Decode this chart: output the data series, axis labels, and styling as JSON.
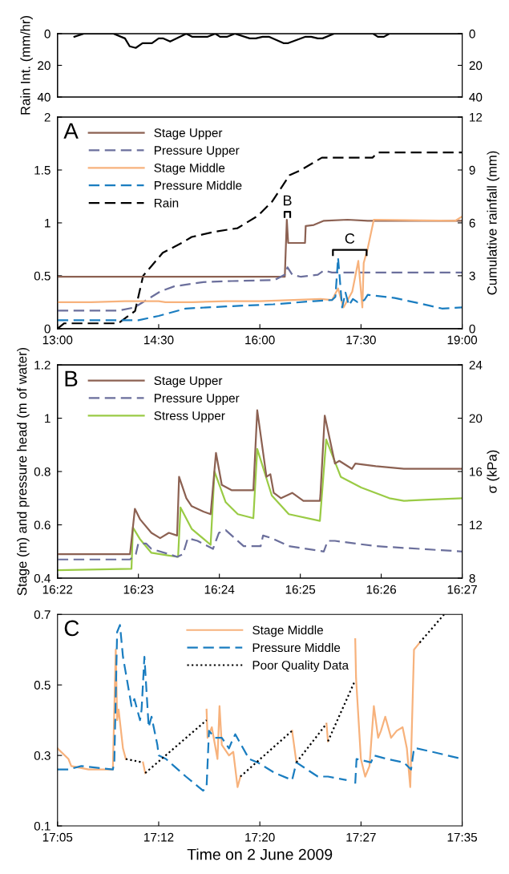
{
  "chart_data": [
    {
      "type": "line",
      "ylabel": "Rain Int. (mm/hr)",
      "xlim": [
        13,
        19
      ],
      "ylim": [
        40,
        0
      ],
      "yticks": [
        0,
        20,
        40
      ],
      "y2lim": [
        40,
        0
      ],
      "y2ticks": [
        0,
        20,
        40
      ],
      "tick_labels": "y",
      "series": [
        {
          "color": "#000000",
          "x": [
            13.25,
            13.39,
            13.83,
            14.0,
            14.07,
            14.16,
            14.26,
            14.4,
            14.5,
            14.57,
            14.67,
            14.91,
            15.0,
            15.22,
            15.34,
            15.41,
            15.51,
            15.63,
            15.85,
            15.94,
            16.04,
            16.14,
            16.35,
            16.42,
            16.67,
            16.76,
            16.86,
            16.93,
            17.1,
            17.68,
            17.75,
            17.84,
            17.92,
            19.0
          ],
          "values": [
            2,
            0,
            0,
            3,
            8,
            9,
            6,
            6,
            3,
            3,
            5,
            0,
            2,
            2,
            0,
            2,
            2,
            0,
            3,
            3,
            2,
            2,
            6,
            6,
            2,
            2,
            3,
            3,
            0,
            0,
            2,
            2,
            0,
            0
          ]
        }
      ]
    },
    {
      "type": "line",
      "y2label": "Cumulative rainfall (mm)",
      "annotations": [
        "A",
        "B",
        "C"
      ],
      "xlim": [
        13,
        19
      ],
      "xticks": [
        {
          "value": 13,
          "label": "13:00"
        },
        {
          "value": 14.5,
          "label": "14:30"
        },
        {
          "value": 16,
          "label": "16:00"
        },
        {
          "value": 17.5,
          "label": "17:30"
        },
        {
          "value": 19,
          "label": "19:00"
        }
      ],
      "ylim": [
        0,
        2
      ],
      "yticks": [
        0,
        0.5,
        1,
        1.5,
        2
      ],
      "y2lim": [
        0,
        12
      ],
      "y2ticks": [
        0,
        3,
        6,
        9,
        12
      ],
      "legend": "top left",
      "series": [
        {
          "name": "Stage Upper",
          "color": "#8c6152",
          "line_style": "solid",
          "x": [
            13.0,
            16.37,
            16.4,
            16.42,
            16.67,
            16.68,
            16.8,
            16.95,
            17.3,
            17.6,
            19.0
          ],
          "values": [
            0.49,
            0.49,
            1.03,
            0.81,
            0.81,
            0.97,
            0.98,
            1.02,
            1.03,
            1.02,
            1.02
          ]
        },
        {
          "name": "Pressure Upper",
          "color": "#6b6f9c",
          "line_style": "dashed",
          "x": [
            13.0,
            13.9,
            14.14,
            14.52,
            14.73,
            15.16,
            15.59,
            16.22,
            16.37,
            16.41,
            16.48,
            16.61,
            16.86,
            16.95,
            17.07,
            19.0
          ],
          "values": [
            0.17,
            0.17,
            0.2,
            0.35,
            0.4,
            0.44,
            0.45,
            0.46,
            0.51,
            0.58,
            0.51,
            0.49,
            0.51,
            0.55,
            0.53,
            0.53
          ]
        },
        {
          "name": "Stage Middle",
          "color": "#f7b27c",
          "line_style": "solid",
          "x": [
            13.0,
            13.5,
            14.0,
            14.5,
            14.6,
            15.0,
            15.5,
            16.0,
            16.5,
            16.9,
            17.07,
            17.16,
            17.24,
            17.37,
            17.46,
            17.52,
            17.54,
            17.6,
            17.69,
            18.9,
            19.0
          ],
          "values": [
            0.25,
            0.25,
            0.26,
            0.26,
            0.25,
            0.25,
            0.26,
            0.26,
            0.27,
            0.28,
            0.27,
            0.38,
            0.2,
            0.35,
            0.64,
            0.2,
            0.62,
            0.76,
            1.03,
            1.02,
            1.06
          ]
        },
        {
          "name": "Pressure Middle",
          "color": "#1a7dc0",
          "line_style": "dashed",
          "x": [
            13.0,
            14.2,
            14.5,
            14.9,
            15.5,
            16.2,
            16.8,
            17.07,
            17.12,
            17.16,
            17.22,
            17.27,
            17.32,
            17.38,
            17.45,
            17.55,
            17.6,
            18.0,
            18.5,
            18.7,
            19.0
          ],
          "values": [
            0.08,
            0.08,
            0.12,
            0.19,
            0.21,
            0.23,
            0.26,
            0.27,
            0.3,
            0.67,
            0.2,
            0.34,
            0.22,
            0.28,
            0.25,
            0.27,
            0.32,
            0.29,
            0.22,
            0.19,
            0.2
          ]
        },
        {
          "name": "Rain",
          "color": "#000000",
          "line_style": "dashed",
          "axis": "y2",
          "x": [
            13.0,
            13.1,
            13.9,
            14.15,
            14.27,
            14.56,
            14.86,
            14.99,
            15.33,
            15.67,
            15.97,
            16.18,
            16.44,
            16.61,
            16.92,
            17.67,
            17.75,
            19.0
          ],
          "values": [
            0,
            0.3,
            0.3,
            1.0,
            3.0,
            4.3,
            4.9,
            5.2,
            5.5,
            5.7,
            6.4,
            7.2,
            8.7,
            9.0,
            9.7,
            9.7,
            10.0,
            10.0
          ]
        }
      ]
    },
    {
      "type": "line",
      "ylabel": "Stage (m) and pressure head (m of water)",
      "y2label": "σ (kPa)",
      "annotations": [
        "B"
      ],
      "xlim": [
        16.36667,
        16.45
      ],
      "xticks": [
        {
          "value": 16.36667,
          "label": "16:22"
        },
        {
          "value": 16.38333,
          "label": "16:23"
        },
        {
          "value": 16.4,
          "label": "16:24"
        },
        {
          "value": 16.41667,
          "label": "16:25"
        },
        {
          "value": 16.43333,
          "label": "16:26"
        },
        {
          "value": 16.45,
          "label": "16:27"
        }
      ],
      "ylim": [
        0.4,
        1.2
      ],
      "yticks": [
        0.4,
        0.6,
        0.8,
        1,
        1.2
      ],
      "y2lim": [
        8,
        24
      ],
      "y2ticks": [
        8,
        12,
        16,
        20,
        24
      ],
      "legend": "top left",
      "series": [
        {
          "name": "Stage Upper",
          "color": "#8c6152",
          "line_style": "solid",
          "x": [
            16.36667,
            16.3816,
            16.3826,
            16.3837,
            16.386,
            16.3878,
            16.3896,
            16.3913,
            16.3917,
            16.3932,
            16.3943,
            16.3967,
            16.3982,
            16.3993,
            16.4005,
            16.4025,
            16.407,
            16.4078,
            16.4097,
            16.4105,
            16.4112,
            16.4127,
            16.415,
            16.4173,
            16.4207,
            16.4208,
            16.4217,
            16.4238,
            16.4247,
            16.4273,
            16.428,
            16.4322,
            16.438,
            16.45
          ],
          "values": [
            0.49,
            0.49,
            0.66,
            0.62,
            0.57,
            0.55,
            0.57,
            0.56,
            0.78,
            0.7,
            0.67,
            0.65,
            0.64,
            0.87,
            0.75,
            0.73,
            0.73,
            1.03,
            0.78,
            0.79,
            0.72,
            0.7,
            0.72,
            0.69,
            0.69,
            0.71,
            1.01,
            0.83,
            0.84,
            0.81,
            0.83,
            0.82,
            0.81,
            0.81
          ]
        },
        {
          "name": "Pressure Upper",
          "color": "#6b6f9c",
          "line_style": "dashed",
          "x": [
            16.36667,
            16.3816,
            16.3828,
            16.3833,
            16.3849,
            16.386,
            16.3896,
            16.3913,
            16.3925,
            16.3935,
            16.3955,
            16.3987,
            16.3999,
            16.4013,
            16.405,
            16.4085,
            16.409,
            16.4108,
            16.4143,
            16.4215,
            16.4223,
            16.4238,
            16.4322,
            16.45
          ],
          "values": [
            0.47,
            0.47,
            0.49,
            0.53,
            0.53,
            0.51,
            0.49,
            0.48,
            0.49,
            0.55,
            0.54,
            0.51,
            0.57,
            0.58,
            0.52,
            0.52,
            0.56,
            0.55,
            0.52,
            0.5,
            0.54,
            0.54,
            0.52,
            0.5
          ]
        },
        {
          "name": "Stress Upper",
          "color": "#9acb45",
          "line_style": "solid",
          "axis": "y2",
          "x": [
            16.36667,
            16.3819,
            16.3822,
            16.3837,
            16.386,
            16.3896,
            16.3915,
            16.392,
            16.3943,
            16.3982,
            16.399,
            16.4013,
            16.4038,
            16.407,
            16.4078,
            16.4108,
            16.4143,
            16.4207,
            16.422,
            16.425,
            16.4292,
            16.435,
            16.438,
            16.444,
            16.45
          ],
          "values": [
            8.6,
            8.7,
            11.8,
            10.9,
            9.9,
            9.7,
            9.6,
            13.3,
            11.7,
            10.5,
            16.0,
            13.7,
            12.8,
            12.5,
            17.7,
            14.2,
            12.8,
            12.3,
            18.4,
            15.6,
            14.8,
            14.0,
            13.8,
            13.9,
            14.0
          ]
        }
      ]
    },
    {
      "type": "line",
      "xlabel": "Time on 2 June 2009",
      "annotations": [
        "C"
      ],
      "xlim": [
        17.08333,
        17.58333
      ],
      "xticks": [
        {
          "value": 17.08333,
          "label": "17:05"
        },
        {
          "value": 17.20833,
          "label": "17:12"
        },
        {
          "value": 17.33333,
          "label": "17:20"
        },
        {
          "value": 17.45833,
          "label": "17:27"
        },
        {
          "value": 17.58333,
          "label": "17:35"
        }
      ],
      "ylim": [
        0.1,
        0.7
      ],
      "yticks": [
        0.1,
        0.3,
        0.5,
        0.7
      ],
      "legend": "top",
      "series": [
        {
          "name": "Stage Middle",
          "color": "#f7b27c",
          "line_style": "solid",
          "x": [
            17.08333,
            17.0968,
            17.1003,
            17.1217,
            17.1517,
            17.1553,
            17.157,
            17.1588,
            17.1642,
            17.1677,
            17.178,
            17.189,
            17.1917,
            17.23,
            17.2675,
            17.2687,
            17.274,
            17.281,
            17.2835,
            17.2863,
            17.2952,
            17.3005,
            17.3058,
            17.3093,
            17.34,
            17.3732,
            17.3785,
            17.4,
            17.4157,
            17.4175,
            17.43,
            17.4512,
            17.4522,
            17.4582,
            17.4635,
            17.4688,
            17.4742,
            17.4795,
            17.483,
            17.4883,
            17.4955,
            17.5025,
            17.5097,
            17.515,
            17.5192,
            17.5238,
            17.5273,
            17.5308
          ],
          "values": [
            0.32,
            0.29,
            0.27,
            0.26,
            0.26,
            0.6,
            0.4,
            0.43,
            0.32,
            0.29,
            null,
            0.28,
            0.25,
            null,
            0.43,
            0.35,
            0.38,
            0.29,
            0.44,
            0.33,
            0.3,
            0.31,
            0.21,
            0.24,
            null,
            0.37,
            0.28,
            null,
            0.39,
            0.34,
            null,
            0.63,
            0.52,
            0.29,
            0.24,
            0.27,
            0.44,
            0.35,
            0.37,
            0.41,
            0.35,
            0.37,
            0.38,
            0.32,
            0.21,
            0.6,
            0.61,
            0.62
          ]
        },
        {
          "name": "Pressure Middle",
          "color": "#1a7dc0",
          "line_style": "dashed",
          "x": [
            17.08333,
            17.0968,
            17.1127,
            17.1517,
            17.1535,
            17.157,
            17.1605,
            17.1642,
            17.1695,
            17.1748,
            17.1783,
            17.1853,
            17.1872,
            17.1907,
            17.196,
            17.1995,
            17.2067,
            17.2083,
            17.2173,
            17.242,
            17.2633,
            17.2675,
            17.2705,
            17.2775,
            17.2863,
            17.2952,
            17.2988,
            17.303,
            17.32,
            17.3307,
            17.352,
            17.3732,
            17.3785,
            17.405,
            17.4175,
            17.4405,
            17.445,
            17.4512,
            17.4528,
            17.4707,
            17.4742,
            17.4902,
            17.5113,
            17.5202,
            17.5238,
            17.5273,
            17.5468,
            17.5833
          ],
          "values": [
            0.26,
            0.26,
            0.27,
            0.26,
            0.28,
            0.65,
            0.67,
            0.58,
            0.51,
            0.44,
            0.46,
            0.4,
            0.43,
            0.58,
            0.38,
            0.41,
            0.33,
            0.3,
            0.29,
            0.24,
            0.2,
            0.21,
            0.37,
            0.35,
            0.35,
            0.32,
            0.34,
            0.36,
            0.29,
            0.28,
            0.25,
            0.23,
            0.28,
            0.24,
            0.24,
            0.23,
            null,
            0.22,
            0.29,
            0.28,
            0.3,
            0.29,
            0.28,
            0.26,
            0.32,
            0.32,
            0.31,
            0.29
          ]
        },
        {
          "name": "Poor Quality Data",
          "color": "#000000",
          "line_style": "dotted",
          "x": [
            17.1677,
            17.189,
            17.19,
            17.1917,
            17.2675,
            17.29,
            17.3093,
            17.3732,
            17.375,
            17.3785,
            17.4157,
            17.416,
            17.4175,
            17.4505,
            17.49,
            17.5308,
            17.561
          ],
          "values": [
            0.29,
            0.28,
            null,
            0.25,
            0.4,
            null,
            0.24,
            0.37,
            null,
            0.28,
            0.39,
            null,
            0.34,
            0.51,
            null,
            0.62,
            0.7
          ]
        }
      ]
    }
  ]
}
